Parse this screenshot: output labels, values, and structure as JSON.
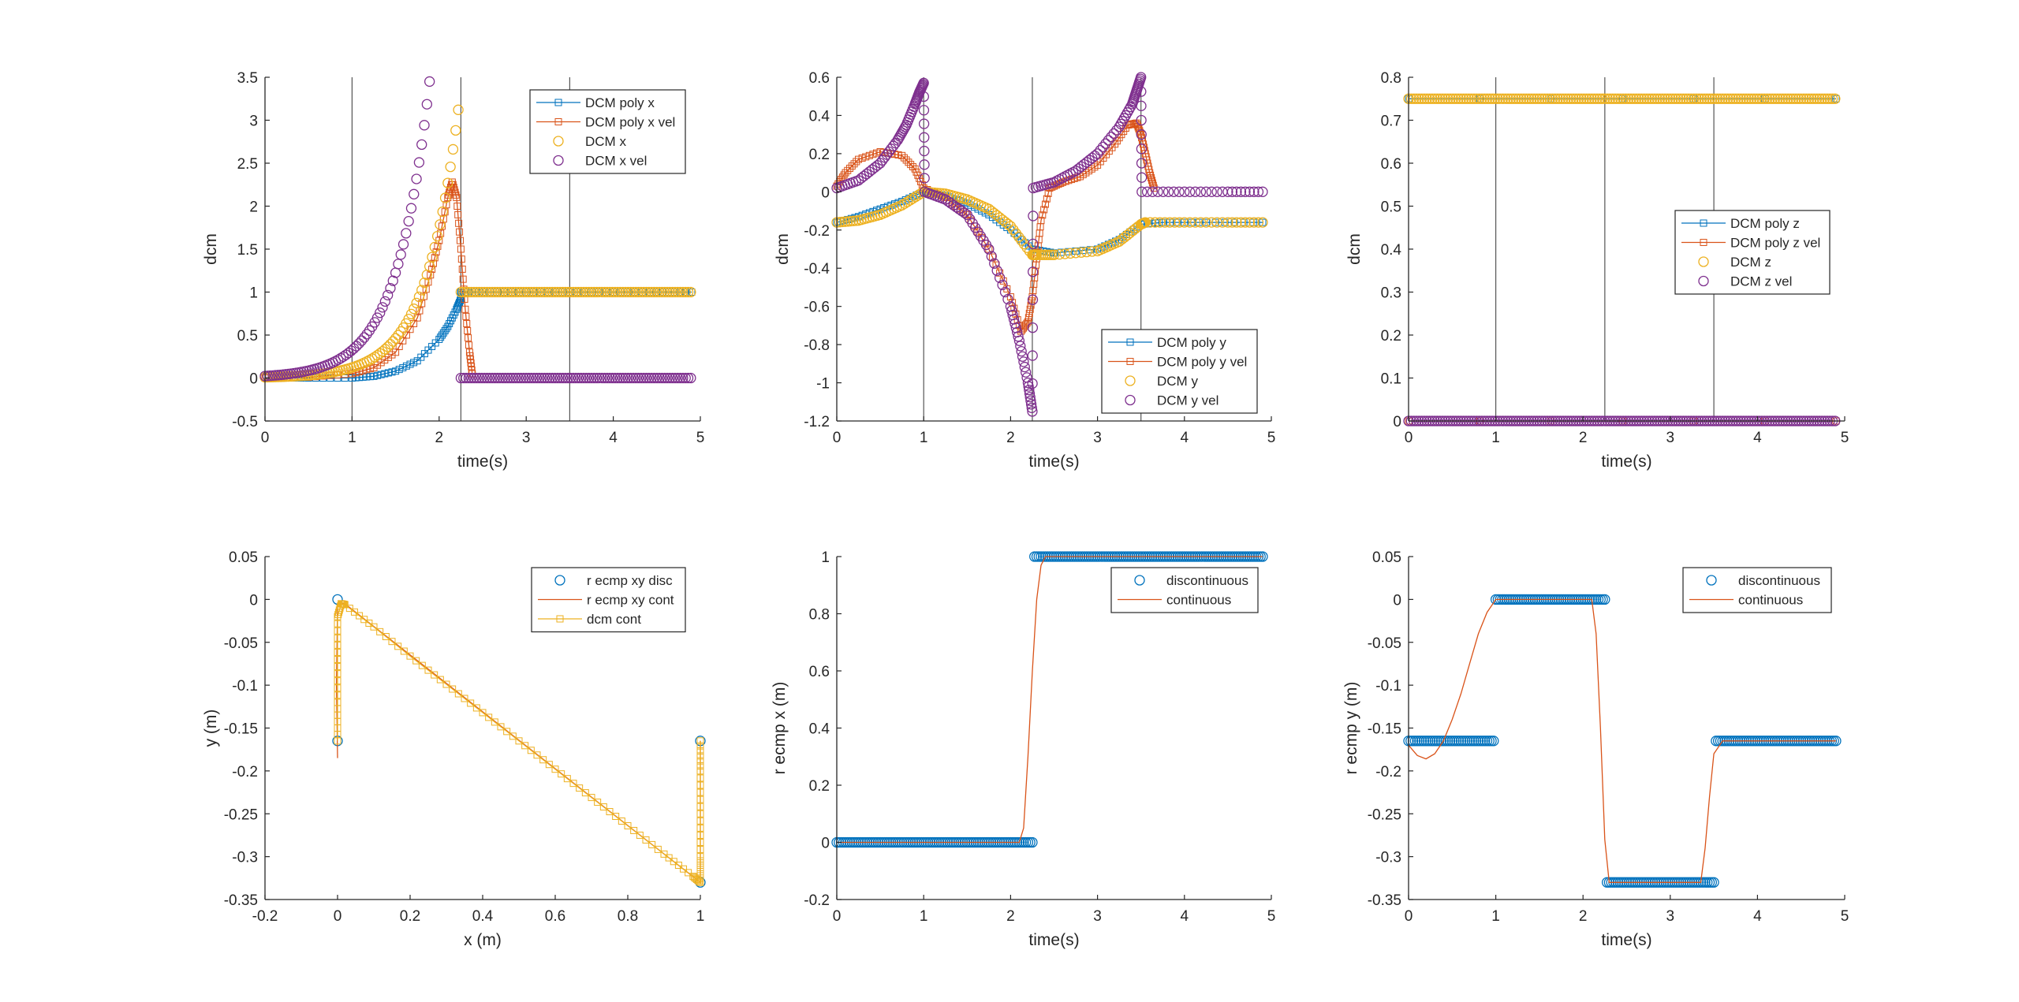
{
  "figure": {
    "background": "#ffffff",
    "axis_color": "#262626",
    "event_line_color": "#555555"
  },
  "colors": {
    "blue": "#0072BD",
    "orange": "#D95319",
    "yellow": "#EDB120",
    "purple": "#7E2F8E"
  },
  "chart_data": [
    {
      "id": "p1",
      "type": "line",
      "xlabel": "time(s)",
      "ylabel": "dcm",
      "xlim": [
        0,
        5
      ],
      "ylim": [
        -0.5,
        3.5
      ],
      "xticks": [
        0,
        1,
        2,
        3,
        4,
        5
      ],
      "xticklabels": [
        "0",
        "1",
        "2",
        "3",
        "4",
        "5"
      ],
      "yticks": [
        -0.5,
        0,
        0.5,
        1,
        1.5,
        2,
        2.5,
        3,
        3.5
      ],
      "yticklabels": [
        "-0.5",
        "0",
        "0.5",
        "1",
        "1.5",
        "2",
        "2.5",
        "3",
        "3.5"
      ],
      "vlines": [
        1,
        2.25,
        3.5
      ],
      "legend_loc": "top-right",
      "series": [
        {
          "name": "DCM poly x",
          "style": "line-square",
          "color": "blue",
          "x": [
            0,
            0.5,
            1,
            1.25,
            1.5,
            1.75,
            2.0,
            2.1,
            2.2,
            2.25,
            2.25,
            2.5,
            3,
            3.5,
            4,
            4.5,
            4.9
          ],
          "y": [
            0,
            0,
            0,
            0.02,
            0.08,
            0.2,
            0.45,
            0.6,
            0.8,
            0.92,
            1,
            1,
            1,
            1,
            1,
            1,
            1
          ]
        },
        {
          "name": "DCM poly x vel",
          "style": "line-square",
          "color": "orange",
          "x": [
            0,
            0.5,
            1,
            1.25,
            1.5,
            1.75,
            1.9,
            2.0,
            2.1,
            2.15,
            2.2,
            2.25,
            2.3,
            2.35,
            2.38
          ],
          "y": [
            0,
            0.01,
            0.05,
            0.12,
            0.3,
            0.7,
            1.2,
            1.6,
            2.1,
            2.28,
            2.1,
            1.5,
            0.8,
            0.3,
            0.05
          ]
        },
        {
          "name": "DCM x",
          "style": "circle",
          "color": "yellow",
          "fn": {
            "kind": "exp_then_const",
            "a": 0.0086,
            "k": 2.655,
            "t_end": 2.25,
            "const": 1.0,
            "t_max": 4.9,
            "dt": 0.03
          }
        },
        {
          "name": "DCM x vel",
          "style": "circle",
          "color": "purple",
          "fn": {
            "kind": "exp_then_const",
            "a": 0.0086,
            "k": 2.655,
            "scale": 2.655,
            "t_end": 2.25,
            "const": 0,
            "t_max": 4.9,
            "dt": 0.03
          }
        }
      ]
    },
    {
      "id": "p2",
      "type": "line",
      "xlabel": "time(s)",
      "ylabel": "dcm",
      "xlim": [
        0,
        5
      ],
      "ylim": [
        -1.2,
        0.6
      ],
      "xticks": [
        0,
        1,
        2,
        3,
        4,
        5
      ],
      "xticklabels": [
        "0",
        "1",
        "2",
        "3",
        "4",
        "5"
      ],
      "yticks": [
        -1.2,
        -1,
        -0.8,
        -0.6,
        -0.4,
        -0.2,
        0,
        0.2,
        0.4,
        0.6
      ],
      "yticklabels": [
        "-1.2",
        "-1",
        "-0.8",
        "-0.6",
        "-0.4",
        "-0.2",
        "0",
        "0.2",
        "0.4",
        "0.6"
      ],
      "vlines": [
        1,
        2.25,
        3.5
      ],
      "legend_loc": "bottom-right",
      "series": [
        {
          "name": "DCM poly y",
          "style": "line-square",
          "color": "blue",
          "x": [
            0,
            0.25,
            0.5,
            0.75,
            1.0,
            1.25,
            1.5,
            1.75,
            2.0,
            2.25,
            2.5,
            3.0,
            3.25,
            3.5,
            3.75,
            4.25,
            4.9
          ],
          "y": [
            -0.16,
            -0.13,
            -0.09,
            -0.05,
            0,
            -0.02,
            -0.06,
            -0.12,
            -0.2,
            -0.3,
            -0.32,
            -0.3,
            -0.25,
            -0.17,
            -0.16,
            -0.16,
            -0.16
          ]
        },
        {
          "name": "DCM poly y vel",
          "style": "line-square",
          "color": "orange",
          "x": [
            0,
            0.1,
            0.25,
            0.5,
            0.75,
            0.9,
            1.0,
            1.25,
            1.5,
            1.75,
            2.0,
            2.12,
            2.2,
            2.25,
            2.3,
            2.35,
            2.45,
            2.6,
            2.8,
            3.0,
            3.2,
            3.35,
            3.45,
            3.5,
            3.55,
            3.6,
            3.65
          ],
          "y": [
            0.03,
            0.1,
            0.17,
            0.21,
            0.19,
            0.12,
            0.02,
            -0.03,
            -0.12,
            -0.3,
            -0.55,
            -0.73,
            -0.68,
            -0.55,
            -0.35,
            -0.15,
            0.02,
            0.05,
            0.08,
            0.14,
            0.25,
            0.35,
            0.36,
            0.3,
            0.2,
            0.1,
            0.02
          ]
        },
        {
          "name": "DCM y",
          "style": "circle",
          "color": "yellow",
          "x": [
            0,
            0.25,
            0.5,
            0.75,
            1.0,
            1.25,
            1.5,
            1.75,
            2.0,
            2.25,
            2.3,
            2.5,
            3.0,
            3.25,
            3.5,
            3.55,
            4.0,
            4.5,
            4.9
          ],
          "y": [
            -0.16,
            -0.15,
            -0.12,
            -0.07,
            0,
            -0.01,
            -0.04,
            -0.09,
            -0.18,
            -0.33,
            -0.33,
            -0.33,
            -0.31,
            -0.26,
            -0.17,
            -0.16,
            -0.16,
            -0.16,
            -0.16
          ]
        },
        {
          "name": "DCM y vel",
          "style": "circle",
          "color": "purple",
          "x": [
            0,
            0.25,
            0.5,
            0.7,
            0.8,
            0.9,
            0.95,
            1.0,
            1.01,
            1.25,
            1.5,
            1.75,
            2.0,
            2.1,
            2.2,
            2.25,
            2.26,
            2.5,
            2.75,
            3.0,
            3.25,
            3.4,
            3.45,
            3.5,
            3.51,
            4.0,
            4.5,
            4.9
          ],
          "y": [
            0.02,
            0.06,
            0.15,
            0.27,
            0.35,
            0.46,
            0.52,
            0.57,
            0,
            -0.04,
            -0.12,
            -0.3,
            -0.6,
            -0.78,
            -1.0,
            -1.15,
            0.02,
            0.05,
            0.11,
            0.2,
            0.34,
            0.46,
            0.53,
            0.6,
            0,
            0,
            0,
            0
          ]
        }
      ]
    },
    {
      "id": "p3",
      "type": "line",
      "xlabel": "time(s)",
      "ylabel": "dcm",
      "xlim": [
        0,
        5
      ],
      "ylim": [
        0,
        0.8
      ],
      "xticks": [
        0,
        1,
        2,
        3,
        4,
        5
      ],
      "xticklabels": [
        "0",
        "1",
        "2",
        "3",
        "4",
        "5"
      ],
      "yticks": [
        0,
        0.1,
        0.2,
        0.3,
        0.4,
        0.5,
        0.6,
        0.7,
        0.8
      ],
      "yticklabels": [
        "0",
        "0.1",
        "0.2",
        "0.3",
        "0.4",
        "0.5",
        "0.6",
        "0.7",
        "0.8"
      ],
      "vlines": [
        1,
        2.25,
        3.5
      ],
      "legend_loc": "center-right",
      "series": [
        {
          "name": "DCM poly z",
          "style": "line-square",
          "color": "blue",
          "x": [
            0,
            4.9
          ],
          "y": [
            0.75,
            0.75
          ]
        },
        {
          "name": "DCM poly z vel",
          "style": "line-square",
          "color": "orange",
          "x": [
            0,
            4.9
          ],
          "y": [
            0,
            0
          ]
        },
        {
          "name": "DCM z",
          "style": "circle",
          "color": "yellow",
          "fn": {
            "kind": "const",
            "const": 0.75,
            "t_max": 4.9,
            "dt": 0.03
          }
        },
        {
          "name": "DCM z vel",
          "style": "circle",
          "color": "purple",
          "fn": {
            "kind": "const",
            "const": 0,
            "t_max": 4.9,
            "dt": 0.03
          }
        }
      ]
    },
    {
      "id": "p4",
      "type": "line",
      "xlabel": "x (m)",
      "ylabel": "y (m)",
      "xlim": [
        -0.2,
        1
      ],
      "ylim": [
        -0.35,
        0.05
      ],
      "xticks": [
        -0.2,
        0,
        0.2,
        0.4,
        0.6,
        0.8,
        1
      ],
      "xticklabels": [
        "-0.2",
        "0",
        "0.2",
        "0.4",
        "0.6",
        "0.8",
        "1"
      ],
      "yticks": [
        -0.35,
        -0.3,
        -0.25,
        -0.2,
        -0.15,
        -0.1,
        -0.05,
        0,
        0.05
      ],
      "yticklabels": [
        "-0.35",
        "-0.3",
        "-0.25",
        "-0.2",
        "-0.15",
        "-0.1",
        "-0.05",
        "0",
        "0.05"
      ],
      "vlines": [],
      "legend_loc": "top-right",
      "series": [
        {
          "name": "r ecmp xy disc",
          "style": "circle-only",
          "color": "blue",
          "x": [
            0,
            0,
            1,
            1
          ],
          "y": [
            0,
            -0.165,
            -0.165,
            -0.33
          ]
        },
        {
          "name": "r ecmp xy cont",
          "style": "line",
          "color": "orange",
          "x": [
            0,
            -0.003,
            0,
            0.02,
            1,
            1,
            1
          ],
          "y": [
            -0.185,
            -0.1,
            -0.005,
            -0.005,
            -0.33,
            -0.25,
            -0.165
          ]
        },
        {
          "name": "dcm cont",
          "style": "line-square",
          "color": "yellow",
          "x": [
            0,
            0,
            0,
            0,
            0.01,
            0.02,
            0.1,
            0.2,
            0.3,
            0.4,
            0.5,
            0.6,
            0.7,
            0.8,
            0.9,
            0.98,
            1,
            1,
            1,
            1,
            1
          ],
          "y": [
            -0.165,
            -0.12,
            -0.07,
            -0.02,
            -0.005,
            -0.006,
            -0.032,
            -0.066,
            -0.099,
            -0.132,
            -0.165,
            -0.198,
            -0.231,
            -0.264,
            -0.297,
            -0.323,
            -0.33,
            -0.3,
            -0.25,
            -0.2,
            -0.165
          ]
        }
      ]
    },
    {
      "id": "p5",
      "type": "line",
      "xlabel": "time(s)",
      "ylabel": "r ecmp x (m)",
      "xlim": [
        0,
        5
      ],
      "ylim": [
        -0.2,
        1
      ],
      "xticks": [
        0,
        1,
        2,
        3,
        4,
        5
      ],
      "xticklabels": [
        "0",
        "1",
        "2",
        "3",
        "4",
        "5"
      ],
      "yticks": [
        -0.2,
        0,
        0.2,
        0.4,
        0.6,
        0.8,
        1
      ],
      "yticklabels": [
        "-0.2",
        "0",
        "0.2",
        "0.4",
        "0.6",
        "0.8",
        "1"
      ],
      "vlines": [],
      "legend_loc": "top-right",
      "series": [
        {
          "name": "discontinuous",
          "style": "circle-only",
          "color": "blue",
          "fn": {
            "kind": "step",
            "t_step": 2.25,
            "v0": 0,
            "v1": 1,
            "t_max": 4.9,
            "dt": 0.025
          }
        },
        {
          "name": "continuous",
          "style": "line",
          "color": "orange",
          "x": [
            0,
            2.1,
            2.15,
            2.2,
            2.25,
            2.3,
            2.35,
            2.4,
            2.45,
            4.9
          ],
          "y": [
            0,
            0,
            0.05,
            0.3,
            0.6,
            0.85,
            0.97,
            1,
            1,
            1
          ]
        }
      ]
    },
    {
      "id": "p6",
      "type": "line",
      "xlabel": "time(s)",
      "ylabel": "r ecmp y (m)",
      "xlim": [
        0,
        5
      ],
      "ylim": [
        -0.35,
        0.05
      ],
      "xticks": [
        0,
        1,
        2,
        3,
        4,
        5
      ],
      "xticklabels": [
        "0",
        "1",
        "2",
        "3",
        "4",
        "5"
      ],
      "yticks": [
        -0.35,
        -0.3,
        -0.25,
        -0.2,
        -0.15,
        -0.1,
        -0.05,
        0,
        0.05
      ],
      "yticklabels": [
        "-0.35",
        "-0.3",
        "-0.25",
        "-0.2",
        "-0.15",
        "-0.1",
        "-0.05",
        "0",
        "0.05"
      ],
      "vlines": [],
      "legend_loc": "top-right",
      "series": [
        {
          "name": "discontinuous",
          "style": "circle-only",
          "color": "blue",
          "fn": {
            "kind": "piecewise",
            "t_max": 4.9,
            "dt": 0.025,
            "pieces": [
              {
                "t0": 0,
                "t1": 1.0,
                "v": -0.165
              },
              {
                "t0": 1.0,
                "t1": 2.25,
                "v": 0
              },
              {
                "t0": 2.25,
                "t1": 3.5,
                "v": -0.33
              },
              {
                "t0": 3.5,
                "t1": 4.9,
                "v": -0.165
              }
            ]
          }
        },
        {
          "name": "continuous",
          "style": "line",
          "color": "orange",
          "x": [
            0,
            0.1,
            0.2,
            0.3,
            0.4,
            0.5,
            0.6,
            0.7,
            0.8,
            0.9,
            1.0,
            1.05,
            2.1,
            2.15,
            2.2,
            2.25,
            2.3,
            2.35,
            3.35,
            3.4,
            3.45,
            3.5,
            3.6,
            4.9
          ],
          "y": [
            -0.17,
            -0.182,
            -0.186,
            -0.18,
            -0.165,
            -0.14,
            -0.11,
            -0.075,
            -0.04,
            -0.015,
            0,
            0,
            0,
            -0.04,
            -0.15,
            -0.28,
            -0.33,
            -0.33,
            -0.33,
            -0.29,
            -0.23,
            -0.18,
            -0.165,
            -0.165
          ]
        }
      ]
    }
  ]
}
